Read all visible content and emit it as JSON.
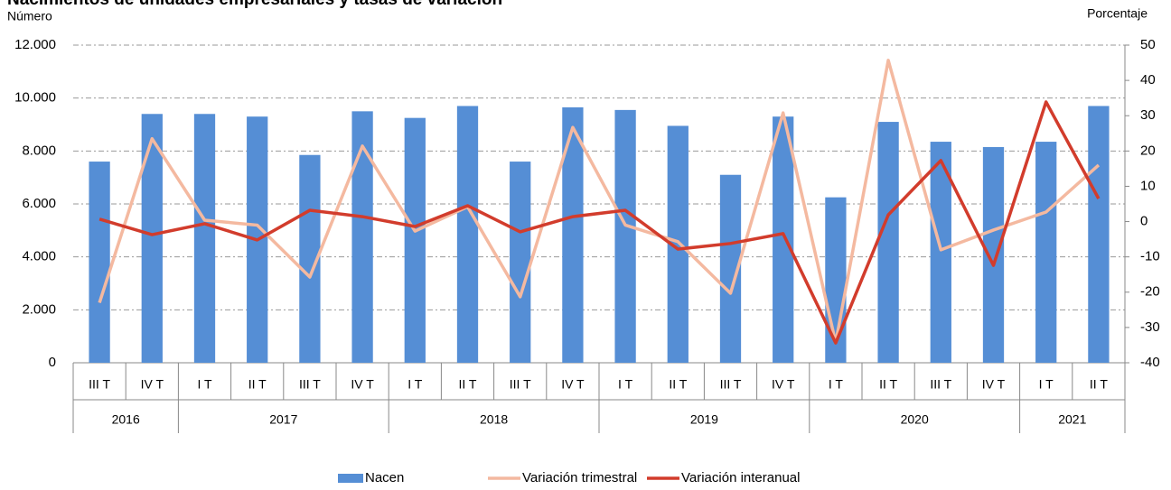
{
  "chart_data": {
    "type": "bar-line",
    "title": "Nacimientos de unidades empresariales y tasas de variación",
    "y_label": "Número",
    "y2_label": "Porcentaje",
    "categories": [
      "III T",
      "IV T",
      "I T",
      "II T",
      "III T",
      "IV T",
      "I T",
      "II T",
      "III T",
      "IV T",
      "I T",
      "II T",
      "III T",
      "IV T",
      "I T",
      "II T",
      "III T",
      "IV T",
      "I T",
      "II T"
    ],
    "category_groups": [
      "2016",
      "2016",
      "2017",
      "2017",
      "2017",
      "2017",
      "2018",
      "2018",
      "2018",
      "2018",
      "2019",
      "2019",
      "2019",
      "2019",
      "2020",
      "2020",
      "2020",
      "2020",
      "2021",
      "2021"
    ],
    "series": [
      {
        "name": "Nacen",
        "type": "bar",
        "color": "#558ed5",
        "values": [
          7600,
          9400,
          9400,
          9300,
          7850,
          9500,
          9250,
          9700,
          7600,
          9650,
          9550,
          8950,
          7100,
          9300,
          6250,
          9100,
          8350,
          8150,
          8350,
          9700
        ]
      },
      {
        "name": "Variación trimestral",
        "type": "line",
        "axis": "y2",
        "color": "#f4b9a0",
        "values": [
          -23,
          23.5,
          0.4,
          -1,
          -15.7,
          21.4,
          -2.7,
          4.2,
          -21.3,
          26.7,
          -1,
          -5.7,
          -20.3,
          30.8,
          -34.3,
          45.7,
          -8,
          -2.4,
          2.7,
          16
        ]
      },
      {
        "name": "Variación interanual",
        "type": "line",
        "axis": "y2",
        "color": "#d23c2c",
        "values": [
          0.7,
          -3.7,
          -0.6,
          -5.2,
          3.2,
          1.4,
          -1.4,
          4.5,
          -2.9,
          1.4,
          3.2,
          -7.8,
          -6.2,
          -3.4,
          -34.4,
          1.9,
          17.3,
          -12.4,
          33.9,
          6.5
        ]
      }
    ],
    "ylim": [
      0,
      12000
    ],
    "yticks": [
      0,
      {
        "value": 2000,
        "label": "2.000"
      },
      {
        "value": 4000,
        "label": "4.000"
      },
      {
        "value": 6000,
        "label": "6.000"
      },
      {
        "value": 8000,
        "label": "8.000"
      },
      {
        "value": 10000,
        "label": "10.000"
      },
      {
        "value": 12000,
        "label": "12.000"
      }
    ],
    "y2lim": [
      -40,
      50
    ],
    "y2ticks": [
      -40,
      -30,
      -20,
      -10,
      0,
      10,
      20,
      30,
      40,
      50
    ],
    "grid": true
  }
}
